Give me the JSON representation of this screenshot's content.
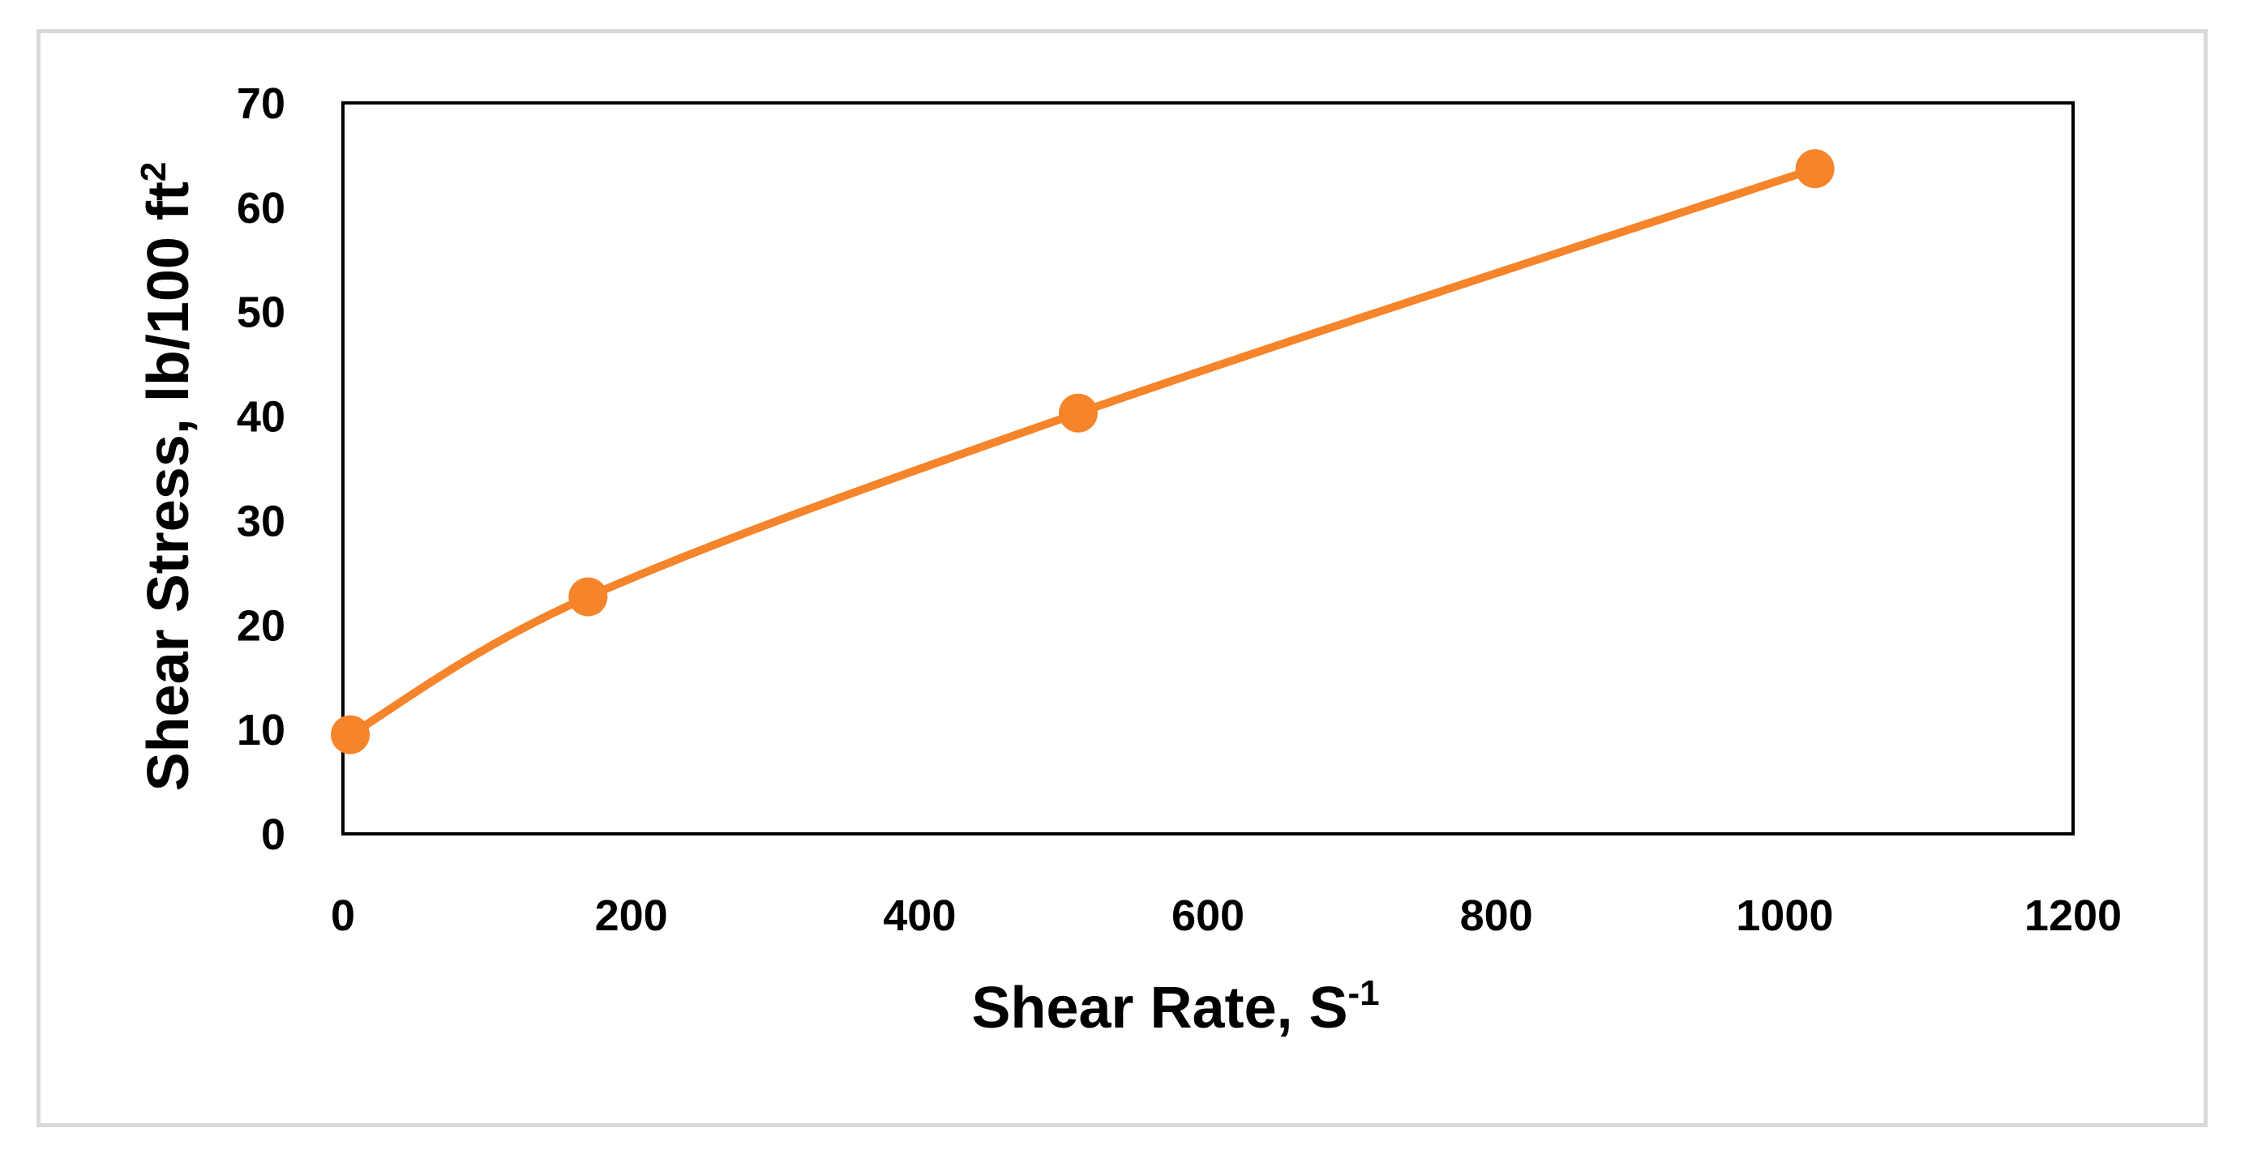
{
  "chart_data": {
    "type": "line",
    "title": "",
    "xlabel": {
      "text": "Shear Rate, S",
      "sup": "-1"
    },
    "ylabel": {
      "text": "Shear Stress, lb/100 ft",
      "sup": "2"
    },
    "xlim": [
      0,
      1200
    ],
    "ylim": [
      0,
      70
    ],
    "x_ticks": [
      0,
      200,
      400,
      600,
      800,
      1000,
      1200
    ],
    "y_ticks": [
      0,
      10,
      20,
      30,
      40,
      50,
      60,
      70
    ],
    "grid": false,
    "legend": "none",
    "smooth": true,
    "series": [
      {
        "color": "#F5842A",
        "marker": "circle",
        "x": [
          5.1,
          170,
          510,
          1021
        ],
        "y": [
          9.5,
          22.7,
          40.3,
          63.7
        ]
      }
    ]
  }
}
